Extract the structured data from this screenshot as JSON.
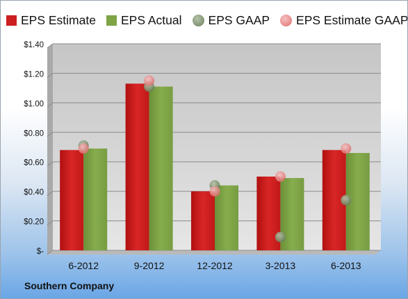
{
  "chart_data": {
    "type": "bar",
    "categories": [
      "6-2012",
      "9-2012",
      "12-2012",
      "3-2013",
      "6-2013"
    ],
    "series": [
      {
        "name": "EPS Estimate",
        "kind": "bar",
        "color": "#cc1f1f",
        "values": [
          0.68,
          1.13,
          0.4,
          0.5,
          0.68
        ]
      },
      {
        "name": "EPS Actual",
        "kind": "bar",
        "color": "#7ea446",
        "values": [
          0.69,
          1.11,
          0.44,
          0.49,
          0.66
        ]
      },
      {
        "name": "EPS GAAP",
        "kind": "point",
        "color": "#7a8f6a",
        "values": [
          0.71,
          1.11,
          0.44,
          0.09,
          0.34
        ]
      },
      {
        "name": "EPS Estimate GAAP",
        "kind": "point",
        "color": "#e88a8a",
        "values": [
          0.69,
          1.15,
          0.4,
          0.5,
          0.69
        ]
      }
    ],
    "ylim": [
      0,
      1.4
    ],
    "yticks": [
      0,
      0.2,
      0.4,
      0.6,
      0.8,
      1.0,
      1.2,
      1.4
    ],
    "ytick_labels": [
      "$-",
      "$0.20",
      "$0.40",
      "$0.60",
      "$0.80",
      "$1.00",
      "$1.20",
      "$1.40"
    ],
    "grid": true,
    "legend_position": "top"
  },
  "footer": {
    "company": "Southern Company"
  }
}
